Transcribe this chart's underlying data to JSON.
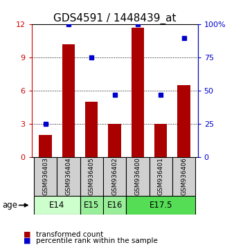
{
  "title": "GDS4591 / 1448439_at",
  "samples": [
    "GSM936403",
    "GSM936404",
    "GSM936405",
    "GSM936402",
    "GSM936400",
    "GSM936401",
    "GSM936406"
  ],
  "transformed_count": [
    2.0,
    10.2,
    5.0,
    3.0,
    11.7,
    3.0,
    6.5
  ],
  "percentile_rank": [
    25,
    100,
    75,
    47,
    100,
    47,
    90
  ],
  "bar_color": "#aa0000",
  "dot_color": "#0000cc",
  "ylim_left": [
    0,
    12
  ],
  "ylim_right": [
    0,
    100
  ],
  "yticks_left": [
    0,
    3,
    6,
    9,
    12
  ],
  "yticks_right": [
    0,
    25,
    50,
    75,
    100
  ],
  "ytick_labels_left": [
    "0",
    "3",
    "6",
    "9",
    "12"
  ],
  "ytick_labels_right": [
    "0",
    "25",
    "50",
    "75",
    "100%"
  ],
  "age_groups": [
    {
      "label": "E14",
      "start": 0,
      "end": 2,
      "color": "#ccffcc"
    },
    {
      "label": "E15",
      "start": 2,
      "end": 3,
      "color": "#99ee99"
    },
    {
      "label": "E16",
      "start": 3,
      "end": 4,
      "color": "#99ee99"
    },
    {
      "label": "E17.5",
      "start": 4,
      "end": 7,
      "color": "#55dd55"
    }
  ],
  "legend_bar_label": "transformed count",
  "legend_dot_label": "percentile rank within the sample",
  "age_label": "age",
  "background_color": "#ffffff",
  "left_tick_color": "#cc0000",
  "right_tick_color": "#0000cc",
  "gsm_box_color": "#d0d0d0",
  "title_fontsize": 11,
  "tick_fontsize": 8,
  "sample_fontsize": 6.5,
  "age_fontsize": 8.5,
  "legend_fontsize": 7.5
}
